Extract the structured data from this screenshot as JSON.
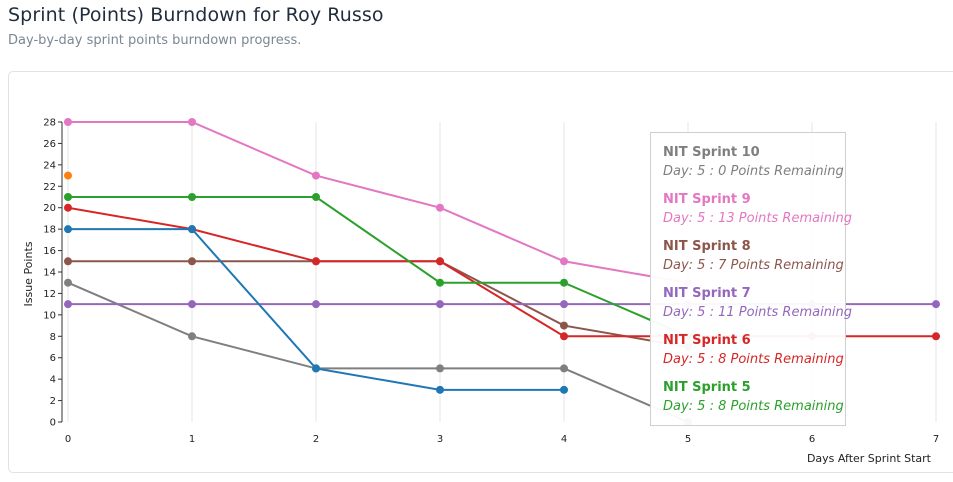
{
  "page": {
    "title": "Sprint (Points) Burndown for Roy Russo",
    "subtitle": "Day-by-day sprint points burndown progress."
  },
  "chart_data": {
    "type": "line",
    "xlabel": "Days After Sprint Start",
    "ylabel": "Issue Points",
    "xlim": [
      0,
      7
    ],
    "ylim": [
      0,
      28
    ],
    "xticks": [
      0,
      1,
      2,
      3,
      4,
      5,
      6,
      7
    ],
    "yticks": [
      0,
      2,
      4,
      6,
      8,
      10,
      12,
      14,
      16,
      18,
      20,
      22,
      24,
      26,
      28
    ],
    "grid": "vertical",
    "series": [
      {
        "name": "NIT Sprint 10",
        "color": "#7f7f7f",
        "points": [
          [
            0,
            13
          ],
          [
            1,
            8
          ],
          [
            2,
            5
          ],
          [
            3,
            5
          ],
          [
            4,
            5
          ],
          [
            5,
            0
          ]
        ]
      },
      {
        "name": "NIT Sprint 9",
        "color": "#e377c2",
        "points": [
          [
            0,
            28
          ],
          [
            1,
            28
          ],
          [
            2,
            23
          ],
          [
            3,
            20
          ],
          [
            4,
            15
          ],
          [
            5,
            13
          ]
        ]
      },
      {
        "name": "NIT Sprint 8",
        "color": "#8c564b",
        "points": [
          [
            0,
            15
          ],
          [
            1,
            15
          ],
          [
            2,
            15
          ],
          [
            3,
            15
          ],
          [
            4,
            9
          ],
          [
            5,
            7
          ]
        ]
      },
      {
        "name": "NIT Sprint 7",
        "color": "#9467bd",
        "points": [
          [
            0,
            11
          ],
          [
            1,
            11
          ],
          [
            2,
            11
          ],
          [
            3,
            11
          ],
          [
            4,
            11
          ],
          [
            5,
            11
          ],
          [
            6,
            11
          ],
          [
            7,
            11
          ]
        ]
      },
      {
        "name": "NIT Sprint 6",
        "color": "#d62728",
        "points": [
          [
            0,
            20
          ],
          [
            1,
            18
          ],
          [
            2,
            15
          ],
          [
            3,
            15
          ],
          [
            4,
            8
          ],
          [
            5,
            8
          ],
          [
            6,
            8
          ],
          [
            7,
            8
          ]
        ]
      },
      {
        "name": "NIT Sprint 5",
        "color": "#2ca02c",
        "points": [
          [
            0,
            21
          ],
          [
            1,
            21
          ],
          [
            2,
            21
          ],
          [
            3,
            13
          ],
          [
            4,
            13
          ],
          [
            5,
            8
          ]
        ]
      },
      {
        "color": "#1f77b4",
        "points": [
          [
            0,
            18
          ],
          [
            1,
            18
          ],
          [
            2,
            5
          ],
          [
            3,
            3
          ],
          [
            4,
            3
          ]
        ]
      },
      {
        "color": "#ff7f0e",
        "points": [
          [
            0,
            23
          ]
        ]
      }
    ],
    "tooltip": {
      "items": [
        {
          "name": "NIT Sprint 10",
          "detail": "Day: 5 : 0 Points Remaining",
          "color": "#7f7f7f"
        },
        {
          "name": "NIT Sprint 9",
          "detail": "Day: 5 : 13 Points Remaining",
          "color": "#e377c2"
        },
        {
          "name": "NIT Sprint 8",
          "detail": "Day: 5 : 7 Points Remaining",
          "color": "#8c564b"
        },
        {
          "name": "NIT Sprint 7",
          "detail": "Day: 5 : 11 Points Remaining",
          "color": "#9467bd"
        },
        {
          "name": "NIT Sprint 6",
          "detail": "Day: 5 : 8 Points Remaining",
          "color": "#d62728"
        },
        {
          "name": "NIT Sprint 5",
          "detail": "Day: 5 : 8 Points Remaining",
          "color": "#2ca02c"
        }
      ]
    }
  }
}
